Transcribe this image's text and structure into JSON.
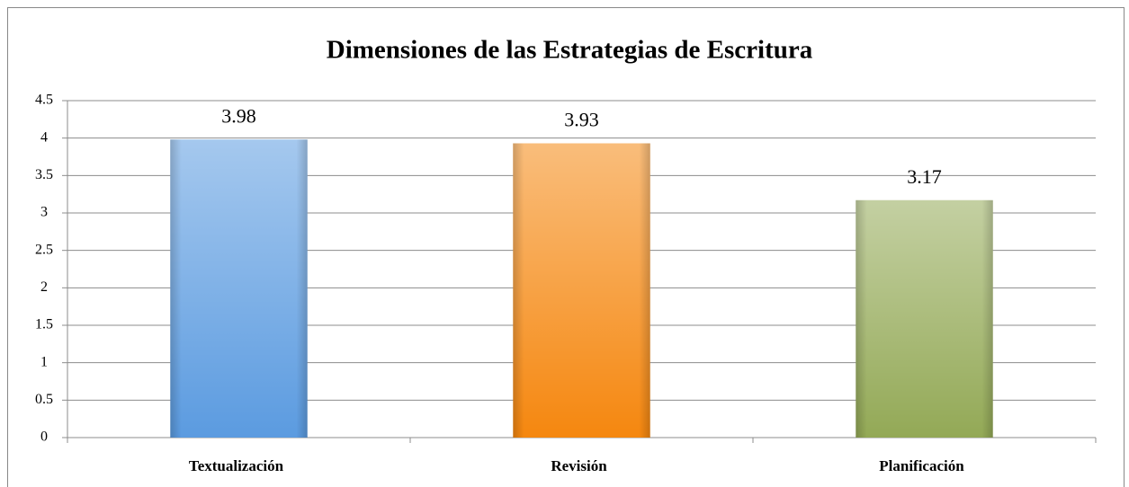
{
  "chart_data": {
    "type": "bar",
    "title": "Dimensiones de las Estrategias de Escritura",
    "categories": [
      "Textualización",
      "Revisión",
      "Planificación"
    ],
    "values": [
      3.98,
      3.93,
      3.17
    ],
    "colors": [
      "#5b9be0",
      "#f5870f",
      "#93a956"
    ],
    "ylim": [
      0,
      4.5
    ],
    "yticks": [
      0,
      0.5,
      1,
      1.5,
      2,
      2.5,
      3,
      3.5,
      4,
      4.5
    ],
    "grid": true
  }
}
